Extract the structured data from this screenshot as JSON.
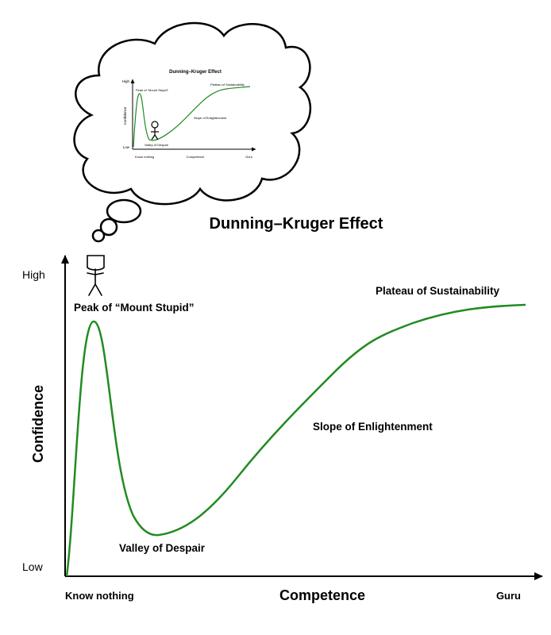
{
  "title": "Dunning–Kruger Effect",
  "axes": {
    "y_label": "Confidence",
    "x_label": "Competence",
    "y_low": "Low",
    "y_high": "High",
    "x_start": "Know nothing",
    "x_end": "Guru"
  },
  "annotations": {
    "peak": "Peak of “Mount Stupid”",
    "valley": "Valley of Despair",
    "slope": "Slope of Enlightenment",
    "plateau": "Plateau of Sustainability"
  },
  "colors": {
    "curve": "#228B22",
    "axes": "#000000"
  },
  "icons": [
    "stick-figure-icon",
    "thought-cloud-icon"
  ]
}
